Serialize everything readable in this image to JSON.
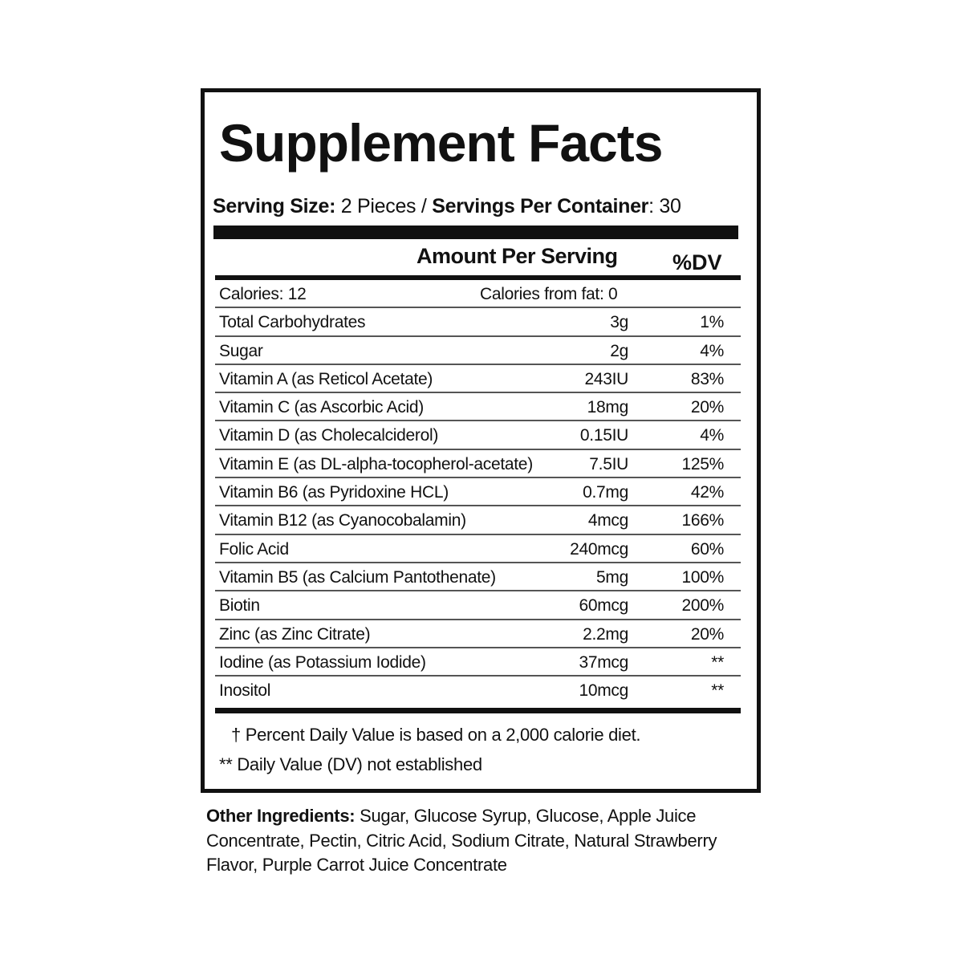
{
  "title": "Supplement Facts",
  "serving": {
    "size_label": "Serving Size:",
    "size_value": "2 Pieces",
    "separator": "/",
    "per_container_label": "Servings Per Container",
    "per_container_value": ": 30"
  },
  "header": {
    "amount": "Amount Per Serving",
    "dv": "%DV"
  },
  "calories": {
    "label": "Calories: 12",
    "from_fat": "Calories from fat: 0"
  },
  "rows": [
    {
      "name": "Total Carbohydrates",
      "amount": "3g",
      "dv": "1%"
    },
    {
      "name": "Sugar",
      "amount": "2g",
      "dv": "4%"
    },
    {
      "name": "Vitamin A (as Reticol Acetate)",
      "amount": "243IU",
      "dv": "83%"
    },
    {
      "name": "Vitamin C (as Ascorbic Acid)",
      "amount": "18mg",
      "dv": "20%"
    },
    {
      "name": "Vitamin D (as Cholecalciderol)",
      "amount": "0.15IU",
      "dv": "4%"
    },
    {
      "name": "Vitamin E (as DL-alpha-tocopherol-acetate)",
      "amount": "7.5IU",
      "dv": "125%"
    },
    {
      "name": "Vitamin B6 (as Pyridoxine HCL)",
      "amount": "0.7mg",
      "dv": "42%"
    },
    {
      "name": "Vitamin B12 (as Cyanocobalamin)",
      "amount": "4mcg",
      "dv": "166%"
    },
    {
      "name": "Folic Acid",
      "amount": "240mcg",
      "dv": "60%"
    },
    {
      "name": "Vitamin B5 (as Calcium Pantothenate)",
      "amount": "5mg",
      "dv": "100%"
    },
    {
      "name": "Biotin",
      "amount": "60mcg",
      "dv": "200%"
    },
    {
      "name": "Zinc (as Zinc Citrate)",
      "amount": "2.2mg",
      "dv": "20%"
    },
    {
      "name": "Iodine (as Potassium Iodide)",
      "amount": "37mcg",
      "dv": "**"
    },
    {
      "name": "Inositol",
      "amount": "10mcg",
      "dv": "**"
    }
  ],
  "footnotes": {
    "percent_dv": "† Percent Daily Value is based on a 2,000 calorie diet.",
    "not_established": "** Daily Value (DV) not established"
  },
  "other_ingredients": {
    "label": "Other Ingredients:",
    "text": " Sugar, Glucose Syrup, Glucose, Apple Juice Concentrate, Pectin, Citric Acid, Sodium Citrate, Natural Strawberry Flavor, Purple Carrot Juice Concentrate"
  }
}
